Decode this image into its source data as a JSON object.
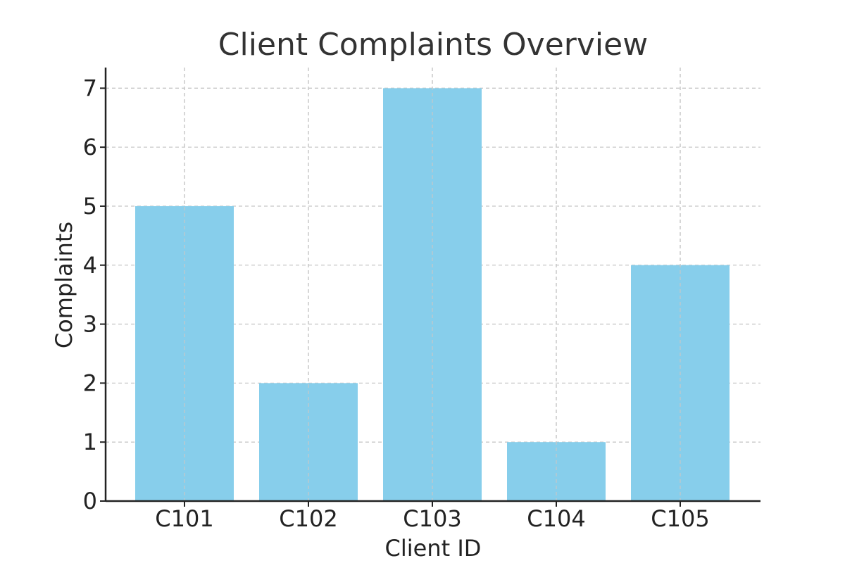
{
  "chart_data": {
    "type": "bar",
    "title": "Client Complaints Overview",
    "xlabel": "Client ID",
    "ylabel": "Complaints",
    "categories": [
      "C101",
      "C102",
      "C103",
      "C104",
      "C105"
    ],
    "values": [
      5,
      2,
      7,
      1,
      4
    ],
    "ylim": [
      0,
      7.35
    ],
    "yticks": [
      0,
      1,
      2,
      3,
      4,
      5,
      6,
      7
    ],
    "grid": true,
    "colors": {
      "bar": "#87ceeb",
      "grid": "#c8c8c8",
      "axis": "#222222",
      "title": "#333333"
    }
  }
}
